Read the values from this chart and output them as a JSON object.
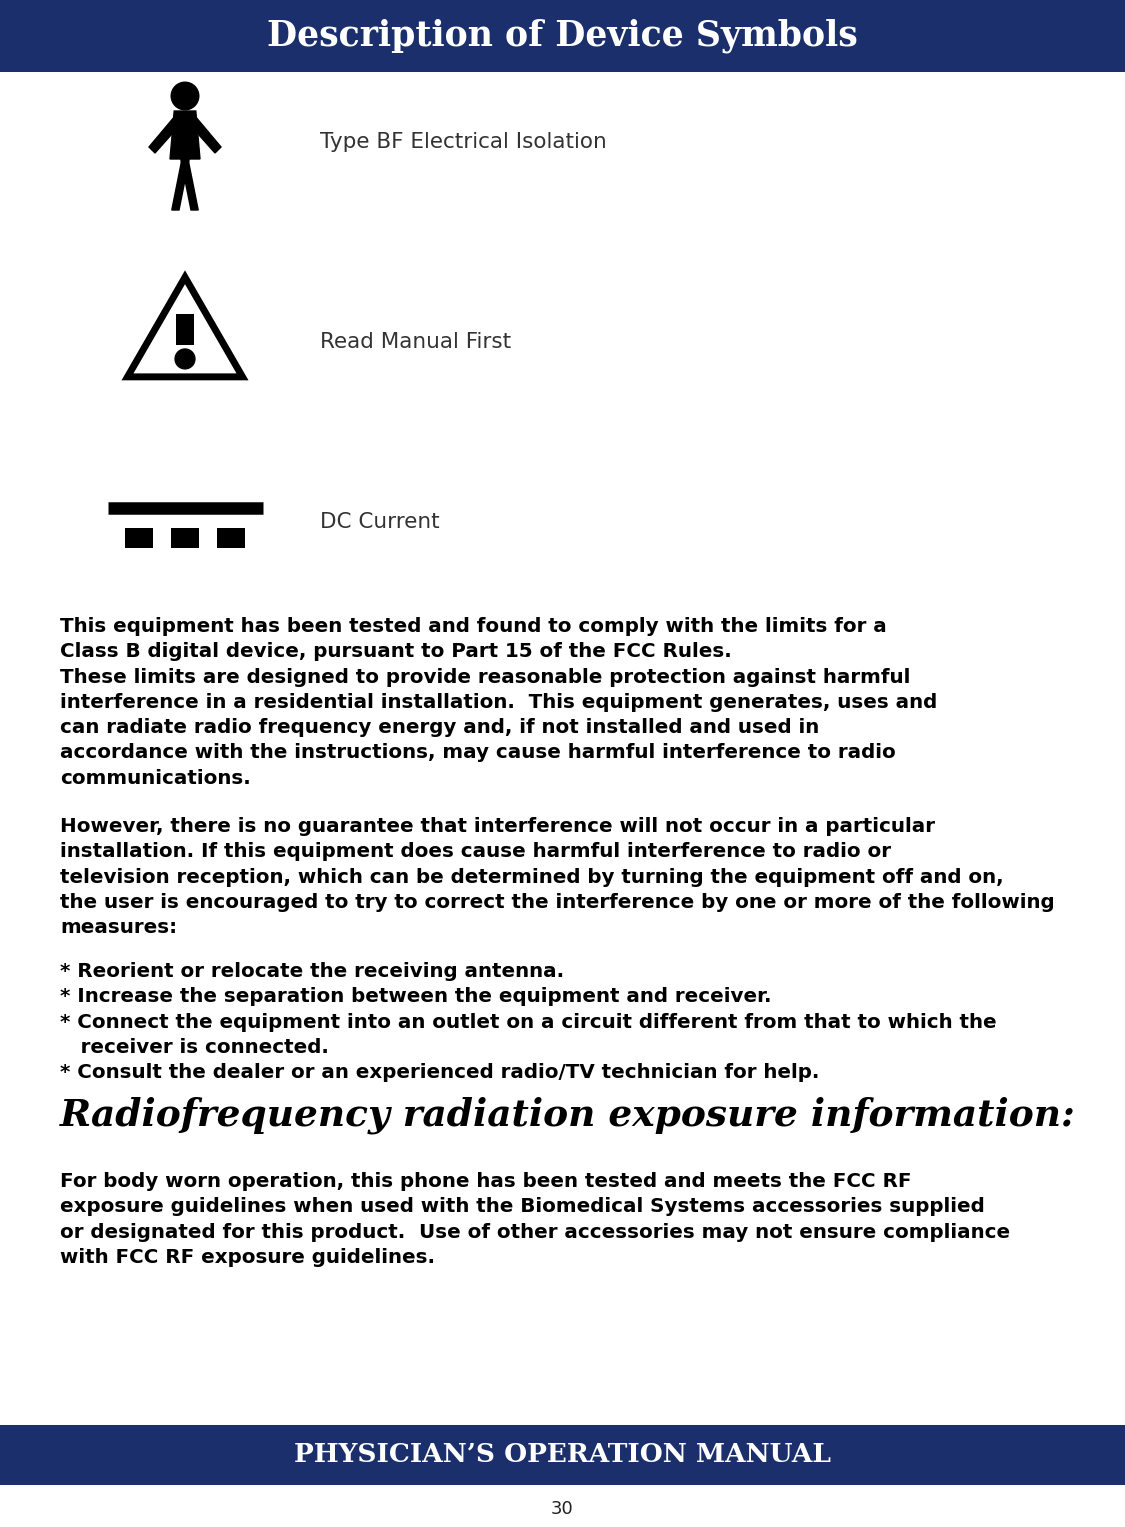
{
  "header_title": "Description of Device Symbols",
  "footer_title": "PHYSICIAN’S OPERATION MANUAL",
  "page_number": "30",
  "header_bg": "#1a2f6b",
  "footer_bg": "#1a2f6b",
  "header_text_color": "#ffffff",
  "footer_text_color": "#ffffff",
  "body_bg": "#ffffff",
  "body_text_color": "#000000",
  "symbol1_label": "Type BF Electrical Isolation",
  "symbol2_label": "Read Manual First",
  "symbol3_label": "DC Current",
  "body_text1": "This equipment has been tested and found to comply with the limits for a\nClass B digital device, pursuant to Part 15 of the FCC Rules.\nThese limits are designed to provide reasonable protection against harmful\ninterference in a residential installation.  This equipment generates, uses and\ncan radiate radio frequency energy and, if not installed and used in\naccordance with the instructions, may cause harmful interference to radio\ncommunications.",
  "body_text2": "However, there is no guarantee that interference will not occur in a particular\ninstallation. If this equipment does cause harmful interference to radio or\ntelevision reception, which can be determined by turning the equipment off and on,\nthe user is encouraged to try to correct the interference by one or more of the following\nmeasures:",
  "body_text3": "* Reorient or relocate the receiving antenna.\n* Increase the separation between the equipment and receiver.\n* Connect the equipment into an outlet on a circuit different from that to which the\n   receiver is connected.\n* Consult the dealer or an experienced radio/TV technician for help.",
  "rf_heading": "Radiofrequency radiation exposure information:",
  "rf_body": "For body worn operation, this phone has been tested and meets the FCC RF\nexposure guidelines when used with the Biomedical Systems accessories supplied\nor designated for this product.  Use of other accessories may not ensure compliance\nwith FCC RF exposure guidelines."
}
